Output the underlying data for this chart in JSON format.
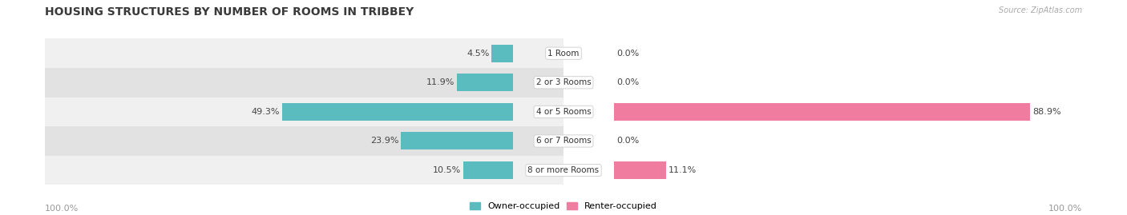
{
  "title": "HOUSING STRUCTURES BY NUMBER OF ROOMS IN TRIBBEY",
  "source": "Source: ZipAtlas.com",
  "categories": [
    "1 Room",
    "2 or 3 Rooms",
    "4 or 5 Rooms",
    "6 or 7 Rooms",
    "8 or more Rooms"
  ],
  "owner_values": [
    4.5,
    11.9,
    49.3,
    23.9,
    10.5
  ],
  "renter_values": [
    0.0,
    0.0,
    88.9,
    0.0,
    11.1
  ],
  "owner_color": "#5bbcbf",
  "renter_color": "#f07ca0",
  "row_bg_even": "#f0f0f0",
  "row_bg_odd": "#e2e2e2",
  "label_color": "#555555",
  "title_color": "#3a3a3a",
  "axis_label_color": "#999999",
  "legend_owner": "Owner-occupied",
  "legend_renter": "Renter-occupied",
  "x_left_label": "100.0%",
  "x_right_label": "100.0%",
  "max_value": 100.0,
  "title_fontsize": 10,
  "label_fontsize": 8,
  "value_label_fontsize": 8,
  "bar_height": 0.6
}
